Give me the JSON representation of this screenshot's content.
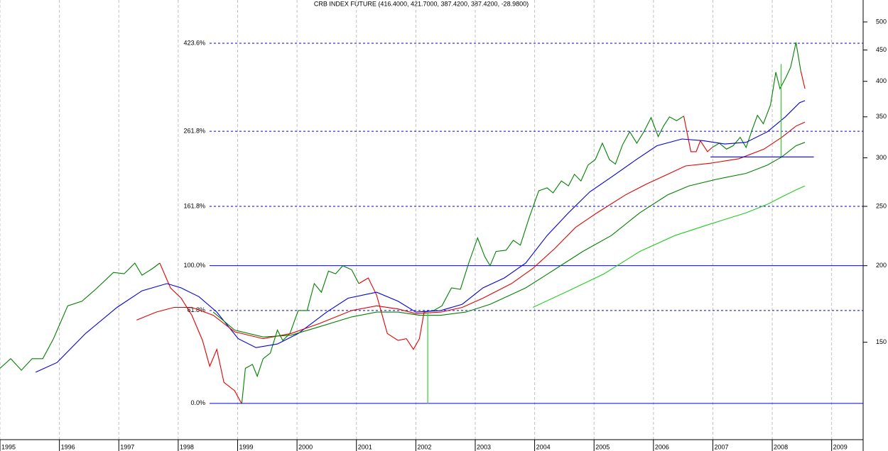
{
  "chart_data": {
    "type": "line",
    "title": "CRB INDEX FUTURE (416.4000, 421.7000, 387.4200, 387.4200, -28.9800)",
    "y_log": true,
    "y_axis_side": "right",
    "grid": true,
    "xlim": [
      1995,
      2009.53
    ],
    "ylim": [
      104,
      543
    ],
    "xticks": [
      1995,
      1996,
      1997,
      1998,
      1999,
      2000,
      2001,
      2002,
      2003,
      2004,
      2005,
      2006,
      2007,
      2008,
      2009
    ],
    "yticks": [
      150,
      200,
      250,
      300,
      350,
      400,
      450,
      500
    ],
    "levels": [
      {
        "value": 119.2,
        "label": "0.0%",
        "style": "solid"
      },
      {
        "value": 169,
        "label": "61.8%",
        "style": "dashed"
      },
      {
        "value": 200,
        "label": "100.0%",
        "style": "solid"
      },
      {
        "value": 250,
        "label": "161.8%",
        "style": "dashed"
      },
      {
        "value": 331.5,
        "label": "261.8%",
        "style": "dashed"
      },
      {
        "value": 461.5,
        "label": "423.6%",
        "style": "dashed"
      }
    ],
    "level_color": "#0000ee",
    "series": [
      {
        "color": "#008000",
        "x": [
          1995.0,
          1995.18,
          1995.36,
          1995.54,
          1995.72,
          1995.9,
          1996.14,
          1996.38,
          1996.61,
          1996.91,
          1997.09,
          1997.27,
          1997.39,
          1997.57,
          1997.69
        ],
        "values": [
          136,
          141,
          135,
          141,
          141,
          152,
          172,
          175,
          183,
          195,
          194,
          202,
          193,
          198,
          202
        ]
      },
      {
        "color": "#e00000",
        "x": [
          1997.69,
          1997.87,
          1998.05,
          1998.23,
          1998.41,
          1998.53,
          1998.65,
          1998.77,
          1998.95,
          1999.07
        ],
        "values": [
          202,
          184,
          177,
          166,
          151,
          137,
          146,
          129,
          125,
          119
        ]
      },
      {
        "color": "#008000",
        "x": [
          1999.07,
          1999.13,
          1999.25,
          1999.33,
          1999.43,
          1999.55,
          1999.67,
          1999.76,
          1999.88,
          2000.02,
          2000.17,
          2000.29,
          2000.41,
          2000.53,
          2000.65,
          2000.77,
          2000.92,
          2001.04
        ],
        "values": [
          119,
          136,
          138,
          132,
          141,
          144,
          157,
          151,
          155,
          169,
          169,
          187,
          181,
          196,
          194,
          200,
          197,
          187
        ]
      },
      {
        "color": "#e00000",
        "x": [
          2001.04,
          2001.2,
          2001.34,
          2001.52,
          2001.7,
          2001.84,
          2001.96,
          2002.06,
          2002.14
        ],
        "values": [
          187,
          191,
          179,
          155,
          151,
          152,
          146,
          152,
          168
        ]
      },
      {
        "color": "#008000",
        "x": [
          2002.14,
          2002.3,
          2002.44,
          2002.6,
          2002.75,
          2002.89,
          2003.04,
          2003.16,
          2003.25,
          2003.35,
          2003.52,
          2003.64,
          2003.76,
          2003.91,
          2004.07,
          2004.21,
          2004.31,
          2004.45,
          2004.57,
          2004.67,
          2004.78,
          2004.9,
          2005.02,
          2005.14,
          2005.26,
          2005.36,
          2005.48,
          2005.6,
          2005.72,
          2005.84,
          2005.96,
          2006.08,
          2006.17,
          2006.27,
          2006.39,
          2006.51
        ],
        "values": [
          168,
          169,
          172,
          184,
          183,
          202,
          222,
          207,
          200,
          211,
          212,
          220,
          216,
          240,
          265,
          268,
          263,
          275,
          270,
          282,
          275,
          292,
          298,
          317,
          298,
          293,
          315,
          331,
          317,
          331,
          349,
          325,
          338,
          350,
          345,
          351
        ]
      },
      {
        "color": "#e00000",
        "x": [
          2006.51,
          2006.63,
          2006.72,
          2006.79,
          2006.91,
          2006.99
        ],
        "values": [
          351,
          307,
          307,
          320,
          307,
          312
        ]
      },
      {
        "color": "#008000",
        "x": [
          2006.99,
          2007.11,
          2007.23,
          2007.34,
          2007.46,
          2007.56,
          2007.66,
          2007.75,
          2007.85,
          2007.97,
          2008.06,
          2008.13,
          2008.23,
          2008.31,
          2008.4,
          2008.48
        ],
        "values": [
          312,
          317,
          310,
          314,
          324,
          312,
          333,
          352,
          341,
          366,
          414,
          389,
          406,
          422,
          463,
          416
        ]
      },
      {
        "color": "#e00000",
        "x": [
          2008.48,
          2008.55
        ],
        "values": [
          416,
          389
        ]
      },
      {
        "color": "#0000dd",
        "x": [
          1995.6,
          1995.96,
          1996.44,
          1996.97,
          1997.39,
          1997.81,
          1998.05,
          1998.35,
          1998.65,
          1999.01,
          1999.31,
          1999.67,
          2000.02,
          2000.5,
          2000.86,
          2001.34,
          2001.7,
          2002.0,
          2002.42,
          2002.78,
          2003.13,
          2003.49,
          2003.85,
          2004.21,
          2004.57,
          2004.93,
          2005.29,
          2005.71,
          2006.06,
          2006.48,
          2006.84,
          2007.2,
          2007.56,
          2007.92,
          2008.22,
          2008.46,
          2008.55
        ],
        "values": [
          134,
          139,
          155,
          171,
          182,
          187,
          184,
          178,
          168,
          152,
          147,
          149,
          155,
          168,
          177,
          181,
          175,
          168,
          169,
          173,
          184,
          191,
          202,
          224,
          244,
          264,
          279,
          298,
          314,
          322,
          320,
          316,
          318,
          331,
          350,
          369,
          372
        ]
      },
      {
        "color": "#e00000",
        "x": [
          1997.3,
          1997.63,
          1997.93,
          1998.23,
          1998.59,
          1998.95,
          1999.43,
          1999.9,
          2000.38,
          2000.92,
          2001.34,
          2001.7,
          2002.0,
          2002.42,
          2002.78,
          2003.13,
          2003.61,
          2003.97,
          2004.33,
          2004.69,
          2005.05,
          2005.53,
          2005.89,
          2006.24,
          2006.54,
          2006.96,
          2007.44,
          2007.86,
          2008.16,
          2008.4,
          2008.55
        ],
        "values": [
          163,
          168,
          171,
          171,
          166,
          156,
          152,
          155,
          161,
          169,
          172,
          170,
          167,
          168,
          171,
          177,
          187,
          198,
          213,
          231,
          244,
          261,
          272,
          282,
          291,
          294,
          299,
          310,
          324,
          338,
          343
        ]
      },
      {
        "color": "#008000",
        "x": [
          1998.59,
          1998.95,
          1999.43,
          1999.9,
          2000.38,
          2000.92,
          2001.34,
          2001.7,
          2002.06,
          2002.42,
          2002.84,
          2003.25,
          2003.85,
          2004.33,
          2004.81,
          2005.29,
          2005.77,
          2006.24,
          2006.6,
          2007.08,
          2007.56,
          2007.92,
          2008.16,
          2008.4,
          2008.55
        ],
        "values": [
          168,
          157,
          153,
          154,
          159,
          165,
          168,
          168,
          166,
          166,
          168,
          173,
          184,
          197,
          211,
          224,
          244,
          261,
          270,
          277,
          283,
          292,
          301,
          314,
          318
        ]
      },
      {
        "color": "#22cc22",
        "x": [
          2003.97,
          2004.57,
          2005.17,
          2005.77,
          2006.36,
          2006.96,
          2007.56,
          2007.92,
          2008.16,
          2008.4,
          2008.55
        ],
        "values": [
          171,
          182,
          194,
          211,
          224,
          234,
          244,
          252,
          259,
          266,
          270
        ]
      },
      {
        "color": "#22cc22",
        "x": [
          2002.2,
          2002.2
        ],
        "values": [
          119,
          168
        ]
      },
      {
        "color": "#22cc22",
        "x": [
          2008.15,
          2008.15
        ],
        "values": [
          301,
          427
        ]
      },
      {
        "color": "#0000dd",
        "x": [
          2006.96,
          2008.7
        ],
        "values": [
          301,
          301
        ]
      }
    ]
  }
}
